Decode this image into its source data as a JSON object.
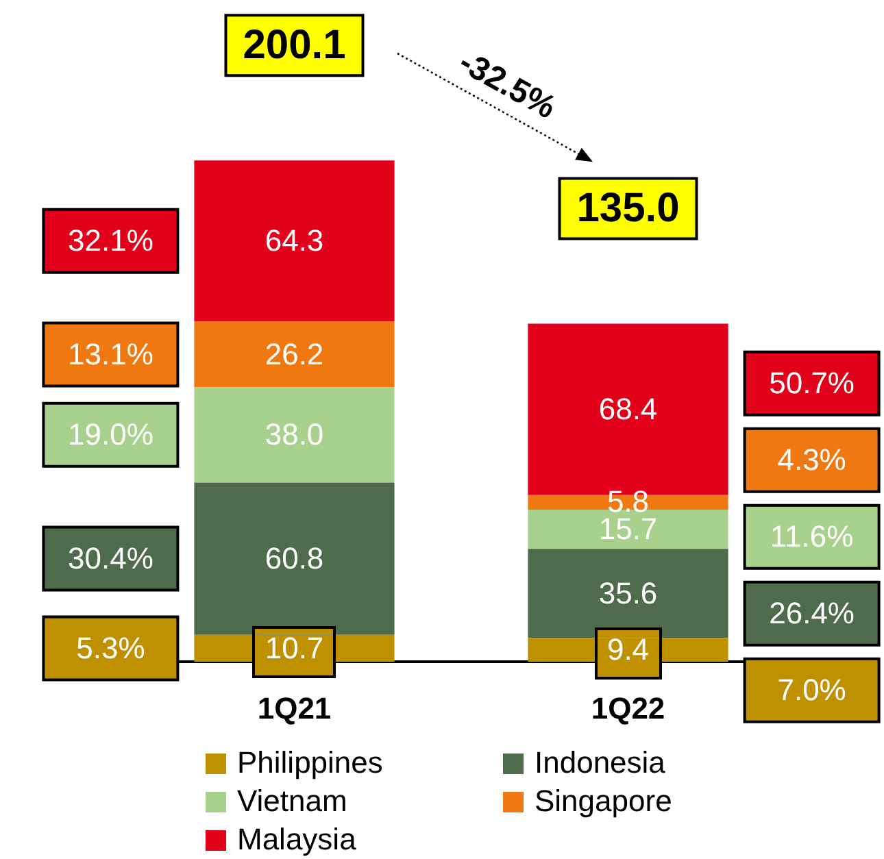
{
  "chart_data": {
    "type": "bar",
    "stacked": true,
    "categories": [
      "1Q21",
      "1Q22"
    ],
    "series": [
      {
        "name": "Philippines",
        "color": "#bf9000",
        "values": [
          10.7,
          9.4
        ],
        "value_labels": [
          "10.7",
          "9.4"
        ]
      },
      {
        "name": "Indonesia",
        "color": "#4e6b4c",
        "values": [
          60.8,
          35.6
        ],
        "value_labels": [
          "60.8",
          "35.6"
        ]
      },
      {
        "name": "Vietnam",
        "color": "#a9d18e",
        "values": [
          38.0,
          15.7
        ],
        "value_labels": [
          "38.0",
          "15.7"
        ]
      },
      {
        "name": "Singapore",
        "color": "#f07810",
        "values": [
          26.2,
          5.8
        ],
        "value_labels": [
          "26.2",
          "5.8"
        ]
      },
      {
        "name": "Malaysia",
        "color": "#e2001a",
        "values": [
          64.3,
          68.4
        ],
        "value_labels": [
          "64.3",
          "68.4"
        ]
      }
    ],
    "totals": [
      "200.1",
      "135.0"
    ],
    "annotations": [
      "-32.5%",
      "32.1%",
      "13.1%",
      "19.0%",
      "30.4%",
      "5.3%",
      "50.7%",
      "4.3%",
      "11.6%",
      "26.4%",
      "7.0%"
    ],
    "legend": "bottom",
    "tick_labels": "x"
  }
}
